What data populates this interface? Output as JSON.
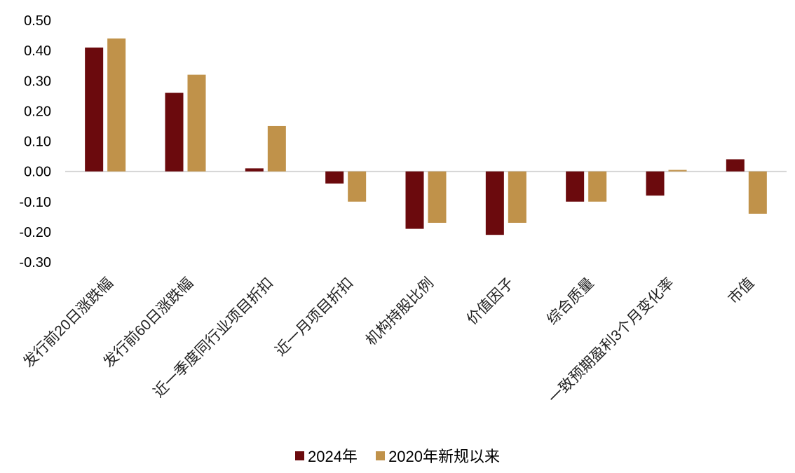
{
  "chart_data": {
    "type": "bar",
    "title": "",
    "xlabel": "",
    "ylabel": "",
    "ylim": [
      -0.3,
      0.5
    ],
    "yticks": [
      "0.50",
      "0.40",
      "0.30",
      "0.20",
      "0.10",
      "0.00",
      "-0.10",
      "-0.20",
      "-0.30"
    ],
    "categories": [
      "发行前20日涨跌幅",
      "发行前60日涨跌幅",
      "近一季度同行业项目折扣",
      "近一月项目折扣",
      "机构持股比例",
      "价值因子",
      "综合质量",
      "一致预期盈利3个月变化率",
      "市值"
    ],
    "series": [
      {
        "name": "2024年",
        "color": "#6b0a0d",
        "values": [
          0.41,
          0.26,
          0.01,
          -0.04,
          -0.19,
          -0.21,
          -0.1,
          -0.08,
          0.04
        ]
      },
      {
        "name": "2020年新规以来",
        "color": "#c0924a",
        "values": [
          0.44,
          0.32,
          0.15,
          -0.1,
          -0.17,
          -0.17,
          -0.1,
          0.005,
          -0.14
        ]
      }
    ],
    "grid": false,
    "legend_position": "bottom"
  }
}
